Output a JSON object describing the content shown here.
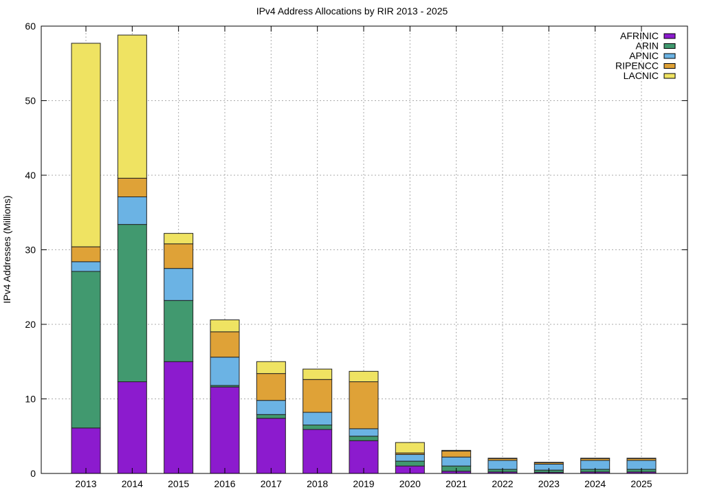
{
  "chart_data": {
    "type": "bar",
    "stacked": true,
    "title": "IPv4 Address Allocations by RIR 2013 - 2025",
    "xlabel": "",
    "ylabel": "IPv4 Addresses (Millions)",
    "ylim": [
      0,
      60
    ],
    "yticks": [
      0,
      10,
      20,
      30,
      40,
      50,
      60
    ],
    "grid": true,
    "legend_position": "top-right",
    "categories": [
      "2013",
      "2014",
      "2015",
      "2016",
      "2017",
      "2018",
      "2019",
      "2020",
      "2021",
      "2022",
      "2023",
      "2024",
      "2025"
    ],
    "series": [
      {
        "name": "AFRINIC",
        "color": "#8c1bce",
        "values": [
          6.1,
          12.3,
          15.0,
          11.6,
          7.4,
          5.9,
          4.4,
          1.0,
          0.3,
          0.2,
          0.15,
          0.2,
          0.2
        ]
      },
      {
        "name": "ARIN",
        "color": "#41996f",
        "values": [
          21.0,
          21.1,
          8.2,
          0.2,
          0.5,
          0.6,
          0.6,
          0.65,
          0.7,
          0.35,
          0.3,
          0.35,
          0.35
        ]
      },
      {
        "name": "APNIC",
        "color": "#6bb3e4",
        "values": [
          1.3,
          3.7,
          4.3,
          3.8,
          1.9,
          1.7,
          1.0,
          0.9,
          1.2,
          1.2,
          0.8,
          1.2,
          1.2
        ]
      },
      {
        "name": "RIPENCC",
        "color": "#dfa237",
        "values": [
          2.0,
          2.5,
          3.3,
          3.4,
          3.6,
          4.4,
          6.3,
          0.2,
          0.8,
          0.25,
          0.2,
          0.25,
          0.25
        ]
      },
      {
        "name": "LACNIC",
        "color": "#efe362",
        "values": [
          27.3,
          19.2,
          1.4,
          1.6,
          1.6,
          1.4,
          1.4,
          1.4,
          0.1,
          0.05,
          0.05,
          0.05,
          0.05
        ]
      }
    ]
  }
}
